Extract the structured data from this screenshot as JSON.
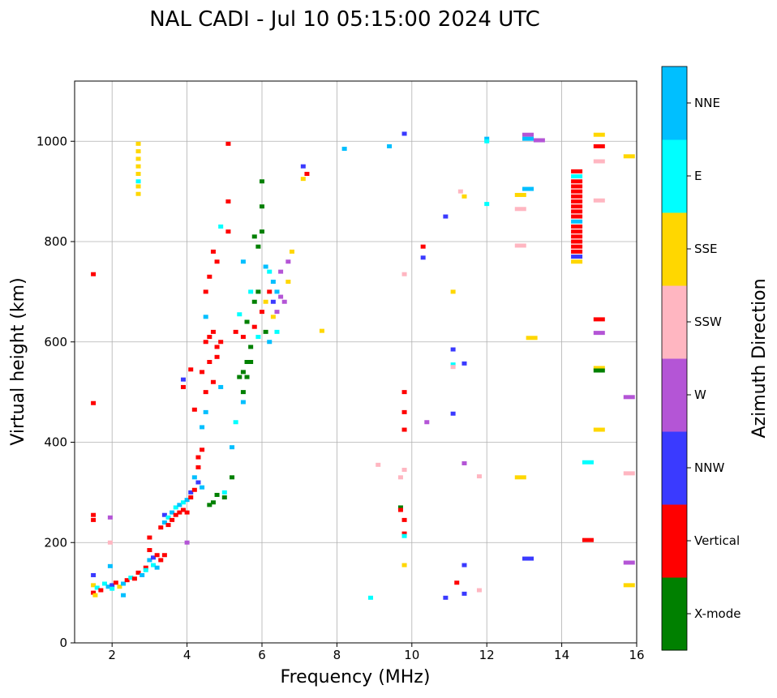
{
  "chart_data": {
    "type": "scatter",
    "title": "NAL CADI - Jul 10 05:15:00 2024 UTC",
    "xlabel": "Frequency (MHz)",
    "ylabel": "Virtual height (km)",
    "xlim": [
      1,
      16
    ],
    "ylim": [
      0,
      1120
    ],
    "xticks": [
      2,
      4,
      6,
      8,
      10,
      12,
      14,
      16
    ],
    "yticks": [
      0,
      200,
      400,
      600,
      800,
      1000
    ],
    "grid": true,
    "colorbar": {
      "label": "Azimuth Direction",
      "categories": [
        "X-mode",
        "Vertical",
        "NNW",
        "W",
        "SSW",
        "SSE",
        "E",
        "NNE"
      ],
      "colors": [
        "#008000",
        "#ff0000",
        "#3a3aff",
        "#b455d6",
        "#ffb6c1",
        "#ffd700",
        "#00ffff",
        "#00bfff"
      ]
    },
    "point_format": [
      "frequency_mhz",
      "height_km",
      "direction_index"
    ],
    "points": [
      [
        1.5,
        100,
        1
      ],
      [
        1.5,
        115,
        5
      ],
      [
        1.55,
        95,
        5
      ],
      [
        1.5,
        135,
        2
      ],
      [
        1.6,
        110,
        6
      ],
      [
        1.7,
        105,
        1
      ],
      [
        1.8,
        118,
        6
      ],
      [
        1.9,
        112,
        7
      ],
      [
        2.0,
        115,
        2
      ],
      [
        2.0,
        108,
        6
      ],
      [
        2.1,
        120,
        1
      ],
      [
        2.2,
        112,
        5
      ],
      [
        2.3,
        118,
        7
      ],
      [
        2.3,
        95,
        7
      ],
      [
        2.4,
        125,
        1
      ],
      [
        2.5,
        130,
        6
      ],
      [
        2.6,
        128,
        1
      ],
      [
        2.7,
        140,
        1
      ],
      [
        2.8,
        135,
        7
      ],
      [
        2.9,
        150,
        1
      ],
      [
        2.9,
        145,
        6
      ],
      [
        3.0,
        165,
        7
      ],
      [
        3.0,
        185,
        1
      ],
      [
        3.0,
        210,
        1
      ],
      [
        3.1,
        170,
        2
      ],
      [
        3.1,
        155,
        6
      ],
      [
        3.2,
        175,
        1
      ],
      [
        3.2,
        150,
        7
      ],
      [
        3.3,
        165,
        1
      ],
      [
        3.4,
        175,
        1
      ],
      [
        3.3,
        230,
        1
      ],
      [
        3.4,
        240,
        7
      ],
      [
        3.4,
        255,
        2
      ],
      [
        3.5,
        250,
        6
      ],
      [
        3.5,
        235,
        1
      ],
      [
        3.6,
        260,
        7
      ],
      [
        3.6,
        245,
        1
      ],
      [
        3.7,
        270,
        6
      ],
      [
        3.7,
        255,
        1
      ],
      [
        3.8,
        275,
        7
      ],
      [
        3.8,
        260,
        1
      ],
      [
        3.9,
        265,
        1
      ],
      [
        3.9,
        280,
        6
      ],
      [
        4.0,
        285,
        7
      ],
      [
        4.0,
        260,
        1
      ],
      [
        4.0,
        200,
        3
      ],
      [
        4.1,
        290,
        1
      ],
      [
        4.1,
        300,
        2
      ],
      [
        4.2,
        305,
        1
      ],
      [
        4.2,
        330,
        7
      ],
      [
        4.3,
        350,
        1
      ],
      [
        4.3,
        320,
        2
      ],
      [
        4.3,
        370,
        1
      ],
      [
        4.4,
        310,
        7
      ],
      [
        4.4,
        385,
        1
      ],
      [
        4.4,
        430,
        7
      ],
      [
        4.5,
        460,
        7
      ],
      [
        4.5,
        500,
        1
      ],
      [
        4.4,
        540,
        1
      ],
      [
        4.6,
        560,
        1
      ],
      [
        4.6,
        610,
        1
      ],
      [
        4.7,
        620,
        1
      ],
      [
        4.8,
        590,
        1
      ],
      [
        4.8,
        570,
        1
      ],
      [
        4.7,
        520,
        1
      ],
      [
        4.9,
        510,
        7
      ],
      [
        4.9,
        600,
        1
      ],
      [
        4.5,
        650,
        7
      ],
      [
        4.5,
        700,
        1
      ],
      [
        4.6,
        730,
        1
      ],
      [
        4.7,
        780,
        1
      ],
      [
        4.8,
        760,
        1
      ],
      [
        4.9,
        830,
        6
      ],
      [
        5.1,
        820,
        1
      ],
      [
        5.1,
        880,
        1
      ],
      [
        5.1,
        995,
        1
      ],
      [
        4.5,
        600,
        1
      ],
      [
        4.1,
        545,
        1
      ],
      [
        3.9,
        525,
        2
      ],
      [
        3.9,
        510,
        1
      ],
      [
        4.2,
        465,
        1
      ],
      [
        5.0,
        300,
        6
      ],
      [
        5.0,
        290,
        0
      ],
      [
        4.8,
        295,
        0
      ],
      [
        4.7,
        280,
        0
      ],
      [
        4.6,
        275,
        0
      ],
      [
        5.2,
        390,
        7
      ],
      [
        5.2,
        330,
        0
      ],
      [
        5.3,
        440,
        6
      ],
      [
        5.5,
        480,
        7
      ],
      [
        5.4,
        530,
        0
      ],
      [
        5.5,
        540,
        0
      ],
      [
        5.5,
        500,
        0
      ],
      [
        5.6,
        560,
        0
      ],
      [
        5.6,
        530,
        0
      ],
      [
        5.7,
        560,
        0
      ],
      [
        5.7,
        590,
        0
      ],
      [
        5.5,
        610,
        1
      ],
      [
        5.3,
        620,
        1
      ],
      [
        5.4,
        655,
        6
      ],
      [
        5.6,
        640,
        0
      ],
      [
        5.8,
        680,
        0
      ],
      [
        5.8,
        630,
        1
      ],
      [
        5.9,
        700,
        0
      ],
      [
        5.7,
        700,
        6
      ],
      [
        5.5,
        760,
        7
      ],
      [
        5.8,
        810,
        0
      ],
      [
        5.9,
        790,
        0
      ],
      [
        6.0,
        870,
        0
      ],
      [
        6.0,
        920,
        0
      ],
      [
        6.0,
        820,
        0
      ],
      [
        6.1,
        750,
        7
      ],
      [
        6.2,
        740,
        6
      ],
      [
        6.2,
        700,
        1
      ],
      [
        6.2,
        600,
        7
      ],
      [
        6.1,
        620,
        0
      ],
      [
        6.0,
        660,
        1
      ],
      [
        6.1,
        680,
        5
      ],
      [
        6.3,
        680,
        2
      ],
      [
        6.3,
        720,
        7
      ],
      [
        6.3,
        650,
        5
      ],
      [
        6.4,
        700,
        7
      ],
      [
        6.4,
        660,
        3
      ],
      [
        6.4,
        620,
        6
      ],
      [
        6.5,
        690,
        3
      ],
      [
        6.5,
        740,
        3
      ],
      [
        6.6,
        680,
        3
      ],
      [
        6.7,
        720,
        5
      ],
      [
        6.7,
        760,
        3
      ],
      [
        6.8,
        780,
        5
      ],
      [
        5.9,
        610,
        6
      ],
      [
        2.7,
        895,
        5
      ],
      [
        2.7,
        910,
        5
      ],
      [
        2.7,
        920,
        6
      ],
      [
        2.7,
        935,
        5
      ],
      [
        2.7,
        950,
        5
      ],
      [
        2.7,
        965,
        5
      ],
      [
        2.7,
        980,
        5
      ],
      [
        2.7,
        995,
        5
      ],
      [
        1.5,
        735,
        1
      ],
      [
        1.5,
        478,
        1
      ],
      [
        1.5,
        245,
        1
      ],
      [
        1.5,
        255,
        1
      ],
      [
        1.95,
        250,
        3
      ],
      [
        1.95,
        200,
        4
      ],
      [
        1.95,
        153,
        7
      ],
      [
        7.1,
        950,
        2
      ],
      [
        7.2,
        935,
        1
      ],
      [
        7.1,
        925,
        5
      ],
      [
        7.6,
        622,
        5
      ],
      [
        8.2,
        985,
        7
      ],
      [
        8.9,
        90,
        6
      ],
      [
        9.1,
        355,
        4
      ],
      [
        9.4,
        990,
        7
      ],
      [
        9.7,
        330,
        4
      ],
      [
        9.7,
        270,
        0
      ],
      [
        9.7,
        265,
        1
      ],
      [
        9.8,
        1015,
        2
      ],
      [
        9.8,
        735,
        4
      ],
      [
        9.8,
        500,
        1
      ],
      [
        9.8,
        460,
        1
      ],
      [
        9.8,
        425,
        1
      ],
      [
        9.8,
        345,
        4
      ],
      [
        9.8,
        245,
        1
      ],
      [
        9.8,
        218,
        1
      ],
      [
        9.8,
        213,
        6
      ],
      [
        9.8,
        155,
        5
      ],
      [
        10.3,
        790,
        1
      ],
      [
        10.3,
        768,
        2
      ],
      [
        10.4,
        440,
        3
      ],
      [
        10.9,
        850,
        2
      ],
      [
        10.9,
        90,
        2
      ],
      [
        11.1,
        700,
        5
      ],
      [
        11.1,
        585,
        2
      ],
      [
        11.1,
        555,
        6
      ],
      [
        11.1,
        550,
        4
      ],
      [
        11.1,
        457,
        2
      ],
      [
        11.2,
        120,
        1
      ],
      [
        11.3,
        900,
        4
      ],
      [
        11.4,
        890,
        5
      ],
      [
        11.4,
        557,
        2
      ],
      [
        11.4,
        358,
        3
      ],
      [
        11.4,
        155,
        2
      ],
      [
        11.4,
        98,
        2
      ],
      [
        11.8,
        332,
        4
      ],
      [
        11.8,
        105,
        4
      ],
      [
        12.0,
        1005,
        7
      ],
      [
        12.0,
        1000,
        6
      ],
      [
        12.0,
        875,
        6
      ],
      [
        12.9,
        893,
        5
      ],
      [
        12.9,
        865,
        4
      ],
      [
        12.9,
        792,
        4
      ],
      [
        12.9,
        330,
        5
      ],
      [
        13.1,
        1013,
        3
      ],
      [
        13.1,
        1005,
        7
      ],
      [
        13.1,
        905,
        7
      ],
      [
        13.2,
        608,
        5
      ],
      [
        13.1,
        168,
        2
      ],
      [
        13.4,
        1002,
        3
      ],
      [
        14.4,
        940,
        1
      ],
      [
        14.4,
        930,
        6
      ],
      [
        14.4,
        920,
        1
      ],
      [
        14.4,
        910,
        1
      ],
      [
        14.4,
        900,
        1
      ],
      [
        14.4,
        890,
        1
      ],
      [
        14.4,
        880,
        1
      ],
      [
        14.4,
        870,
        1
      ],
      [
        14.4,
        860,
        1
      ],
      [
        14.4,
        850,
        1
      ],
      [
        14.4,
        840,
        7
      ],
      [
        14.4,
        830,
        1
      ],
      [
        14.4,
        820,
        1
      ],
      [
        14.4,
        810,
        1
      ],
      [
        14.4,
        800,
        1
      ],
      [
        14.4,
        790,
        1
      ],
      [
        14.4,
        780,
        1
      ],
      [
        14.4,
        770,
        2
      ],
      [
        14.4,
        760,
        5
      ],
      [
        14.7,
        360,
        6
      ],
      [
        14.7,
        205,
        1
      ],
      [
        15.0,
        1013,
        5
      ],
      [
        15.0,
        990,
        1
      ],
      [
        15.0,
        960,
        4
      ],
      [
        15.0,
        882,
        4
      ],
      [
        15.0,
        645,
        1
      ],
      [
        15.0,
        618,
        3
      ],
      [
        15.0,
        548,
        5
      ],
      [
        15.0,
        543,
        0
      ],
      [
        15.0,
        425,
        5
      ],
      [
        15.8,
        970,
        5
      ],
      [
        15.8,
        490,
        3
      ],
      [
        15.8,
        338,
        4
      ],
      [
        15.8,
        160,
        3
      ],
      [
        15.8,
        115,
        5
      ]
    ]
  }
}
